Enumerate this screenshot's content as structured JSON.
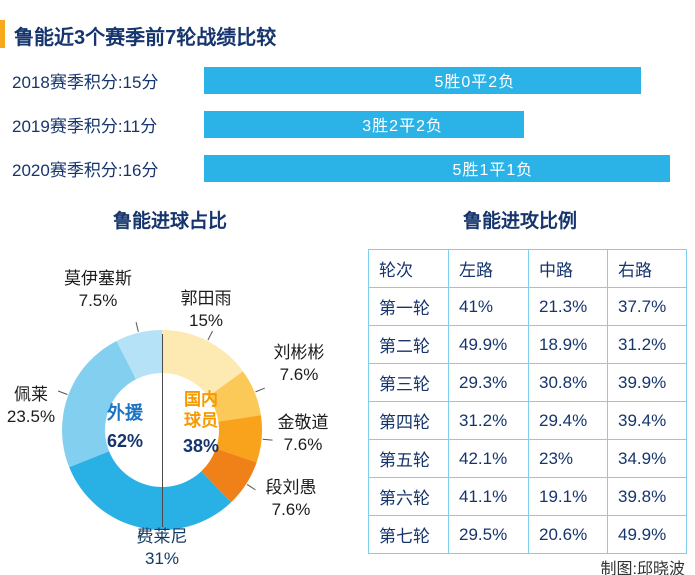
{
  "page": {
    "title": "鲁能近3个赛季前7轮战绩比较",
    "credit": "制图:邱晓波"
  },
  "colors": {
    "navy": "#16356d",
    "bar_cyan": "#2bb3e8",
    "accent_orange": "#f7a81b",
    "table_border": "#7fd0ef",
    "foreign_blue": "#1b74c4",
    "domestic_orange": "#f59a00"
  },
  "chart_data": [
    {
      "type": "bar",
      "title": "鲁能近3个赛季前7轮战绩比较",
      "categories": [
        "2018赛季积分:15分",
        "2019赛季积分:11分",
        "2020赛季积分:16分"
      ],
      "values": [
        15,
        11,
        16
      ],
      "bar_labels": [
        "5胜0平2负",
        "3胜2平2负",
        "5胜1平1负"
      ],
      "xlim": [
        0,
        16
      ],
      "bar_color": "#2bb3e8"
    },
    {
      "type": "pie",
      "title": "鲁能进球占比",
      "slices": [
        {
          "name": "郭田雨",
          "value": 15,
          "display": "15%",
          "color": "#fde9b2"
        },
        {
          "name": "刘彬彬",
          "value": 7.6,
          "display": "7.6%",
          "color": "#fbc957"
        },
        {
          "name": "金敬道",
          "value": 7.6,
          "display": "7.6%",
          "color": "#f9a21b"
        },
        {
          "name": "段刘愚",
          "value": 7.6,
          "display": "7.6%",
          "color": "#f08119"
        },
        {
          "name": "费莱尼",
          "value": 31,
          "display": "31%",
          "color": "#29b1e6"
        },
        {
          "name": "佩莱",
          "value": 23.5,
          "display": "23.5%",
          "color": "#82cff0"
        },
        {
          "name": "莫伊塞斯",
          "value": 7.5,
          "display": "7.5%",
          "color": "#b5e2f7"
        }
      ],
      "center": {
        "left_label": "外援",
        "left_value": "62%",
        "right_label_line1": "国内",
        "right_label_line2": "球员",
        "right_value": "38%"
      }
    },
    {
      "type": "table",
      "title": "鲁能进攻比例",
      "headers": [
        "轮次",
        "左路",
        "中路",
        "右路"
      ],
      "rows": [
        [
          "第一轮",
          "41%",
          "21.3%",
          "37.7%"
        ],
        [
          "第二轮",
          "49.9%",
          "18.9%",
          "31.2%"
        ],
        [
          "第三轮",
          "29.3%",
          "30.8%",
          "39.9%"
        ],
        [
          "第四轮",
          "31.2%",
          "29.4%",
          "39.4%"
        ],
        [
          "第五轮",
          "42.1%",
          "23%",
          "34.9%"
        ],
        [
          "第六轮",
          "41.1%",
          "19.1%",
          "39.8%"
        ],
        [
          "第七轮",
          "29.5%",
          "20.6%",
          "49.9%"
        ]
      ]
    }
  ]
}
